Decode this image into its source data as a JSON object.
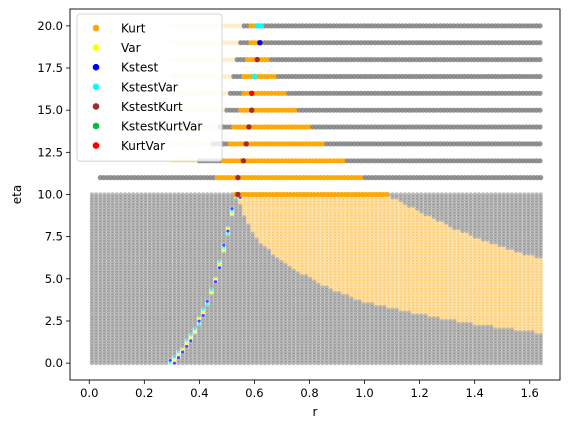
{
  "chart_data": {
    "type": "scatter",
    "xlabel": "r",
    "ylabel": "eta",
    "xlim": [
      -0.07,
      1.71
    ],
    "ylim": [
      -1.0,
      21.0
    ],
    "xticks": [
      0.0,
      0.2,
      0.4,
      0.6,
      0.8,
      1.0,
      1.2,
      1.4,
      1.6
    ],
    "xtick_labels": [
      "0.0",
      "0.2",
      "0.4",
      "0.6",
      "0.8",
      "1.0",
      "1.2",
      "1.4",
      "1.6"
    ],
    "yticks": [
      0.0,
      2.5,
      5.0,
      7.5,
      10.0,
      12.5,
      15.0,
      17.5,
      20.0
    ],
    "ytick_labels": [
      "0.0",
      "2.5",
      "5.0",
      "7.5",
      "10.0",
      "12.5",
      "15.0",
      "17.5",
      "20.0"
    ],
    "grid": false,
    "legend_position": "top-left",
    "colors": {
      "background": "#808080",
      "Kurt": "#FFA500",
      "Var": "#FFFF00",
      "Kstest": "#0000FF",
      "KstestVar": "#00FFFF",
      "KstestKurt": "#A52A2A",
      "KstestKurtVar": "#00C040",
      "KurtVar": "#FF0000"
    },
    "series": [
      {
        "name": "Kurt",
        "color": "#FFA500"
      },
      {
        "name": "Var",
        "color": "#FFFF00"
      },
      {
        "name": "Kstest",
        "color": "#0000FF"
      },
      {
        "name": "KstestVar",
        "color": "#00FFFF"
      },
      {
        "name": "KstestKurt",
        "color": "#A52A2A"
      },
      {
        "name": "KstestKurtVar",
        "color": "#00C040"
      },
      {
        "name": "KurtVar",
        "color": "#FF0000"
      }
    ],
    "grid_points": {
      "r_range": [
        0.01,
        1.64
      ],
      "low_eta_range": [
        0.0,
        10.0
      ],
      "low_eta_rows": 61,
      "low_r_cols": 110,
      "high_eta_rows": [
        11,
        12,
        13,
        14,
        15,
        16,
        17,
        18,
        19,
        20
      ],
      "high_r_step": 0.0125,
      "high_row_r_start": [
        0.04,
        0.3,
        0.3,
        0.3,
        0.3,
        0.3,
        0.3,
        0.3,
        0.3,
        0.3
      ]
    },
    "regions": {
      "low_boundary_curve": [
        [
          0.3,
          0.0
        ],
        [
          0.34,
          0.8
        ],
        [
          0.38,
          1.8
        ],
        [
          0.42,
          3.2
        ],
        [
          0.46,
          5.0
        ],
        [
          0.5,
          7.5
        ],
        [
          0.53,
          10.0
        ]
      ],
      "kurt_low_upper_edge": [
        [
          0.53,
          10.0
        ],
        [
          0.7,
          10.0
        ],
        [
          0.9,
          10.0
        ],
        [
          1.08,
          10.0
        ],
        [
          1.2,
          9.0
        ],
        [
          1.35,
          7.8
        ],
        [
          1.5,
          6.9
        ],
        [
          1.64,
          6.2
        ]
      ],
      "kurt_low_lower_edge": [
        [
          0.53,
          10.0
        ],
        [
          0.6,
          7.5
        ],
        [
          0.7,
          6.0
        ],
        [
          0.85,
          4.6
        ],
        [
          1.0,
          3.6
        ],
        [
          1.2,
          2.9
        ],
        [
          1.4,
          2.3
        ],
        [
          1.64,
          1.8
        ]
      ],
      "kurt_high_rows": [
        {
          "eta": 11,
          "r_start": 0.46,
          "r_end": 0.99
        },
        {
          "eta": 12,
          "r_start": 0.48,
          "r_end": 0.93
        },
        {
          "eta": 13,
          "r_start": 0.51,
          "r_end": 0.86
        },
        {
          "eta": 14,
          "r_start": 0.52,
          "r_end": 0.81
        },
        {
          "eta": 15,
          "r_start": 0.54,
          "r_end": 0.76
        },
        {
          "eta": 16,
          "r_start": 0.55,
          "r_end": 0.72
        },
        {
          "eta": 17,
          "r_start": 0.56,
          "r_end": 0.68
        },
        {
          "eta": 18,
          "r_start": 0.57,
          "r_end": 0.65
        },
        {
          "eta": 19,
          "r_start": 0.58,
          "r_end": 0.63
        },
        {
          "eta": 20,
          "r_start": 0.58,
          "r_end": 0.61
        }
      ],
      "kurt_row10": {
        "eta": 10,
        "r_start": 0.53,
        "r_end": 1.08
      },
      "faint_kurt_left_rows": [
        {
          "eta": 12,
          "r_start": 0.3,
          "r_end": 0.4
        },
        {
          "eta": 13,
          "r_start": 0.3,
          "r_end": 0.44
        },
        {
          "eta": 14,
          "r_start": 0.3,
          "r_end": 0.47
        },
        {
          "eta": 15,
          "r_start": 0.3,
          "r_end": 0.49
        },
        {
          "eta": 16,
          "r_start": 0.3,
          "r_end": 0.51
        },
        {
          "eta": 17,
          "r_start": 0.3,
          "r_end": 0.52
        },
        {
          "eta": 18,
          "r_start": 0.3,
          "r_end": 0.53
        },
        {
          "eta": 19,
          "r_start": 0.3,
          "r_end": 0.54
        },
        {
          "eta": 20,
          "r_start": 0.3,
          "r_end": 0.55
        }
      ],
      "marker_points": [
        {
          "series": "KstestKurt",
          "r": 0.54,
          "eta": 10
        },
        {
          "series": "KstestKurt",
          "r": 0.54,
          "eta": 11
        },
        {
          "series": "KstestKurt",
          "r": 0.56,
          "eta": 12
        },
        {
          "series": "KstestKurt",
          "r": 0.57,
          "eta": 13
        },
        {
          "series": "KstestKurt",
          "r": 0.58,
          "eta": 14
        },
        {
          "series": "KstestKurt",
          "r": 0.59,
          "eta": 15
        },
        {
          "series": "KurtVar",
          "r": 0.59,
          "eta": 16
        },
        {
          "series": "KstestKurtVar",
          "r": 0.6,
          "eta": 17
        },
        {
          "series": "KstestKurt",
          "r": 0.61,
          "eta": 18
        },
        {
          "series": "Kstest",
          "r": 0.62,
          "eta": 19
        },
        {
          "series": "KstestVar",
          "r": 0.625,
          "eta": 20
        },
        {
          "series": "KstestVar",
          "r": 0.61,
          "eta": 20
        },
        {
          "series": "KstestVar",
          "r": 0.6,
          "eta": 17
        }
      ]
    }
  }
}
